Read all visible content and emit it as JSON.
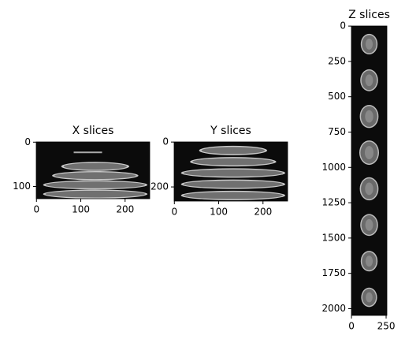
{
  "chart_data": [
    {
      "type": "image",
      "title": "X slices",
      "xlim": [
        -0.5,
        255.5
      ],
      "ylim": [
        127.5,
        -0.5
      ],
      "xticks": [
        0,
        100,
        200
      ],
      "yticks": [
        0,
        100
      ]
    },
    {
      "type": "image",
      "title": "Y slices",
      "xlim": [
        -0.5,
        255.5
      ],
      "ylim": [
        263,
        -0.5
      ],
      "xticks": [
        0,
        100,
        200
      ],
      "yticks": [
        0,
        200
      ]
    },
    {
      "type": "image",
      "title": "Z slices",
      "xlim": [
        -0.5,
        255.5
      ],
      "ylim": [
        2047.5,
        -0.5
      ],
      "xticks": [
        0,
        250
      ],
      "yticks": [
        0,
        250,
        500,
        750,
        1000,
        1250,
        1500,
        1750,
        2000
      ]
    }
  ]
}
